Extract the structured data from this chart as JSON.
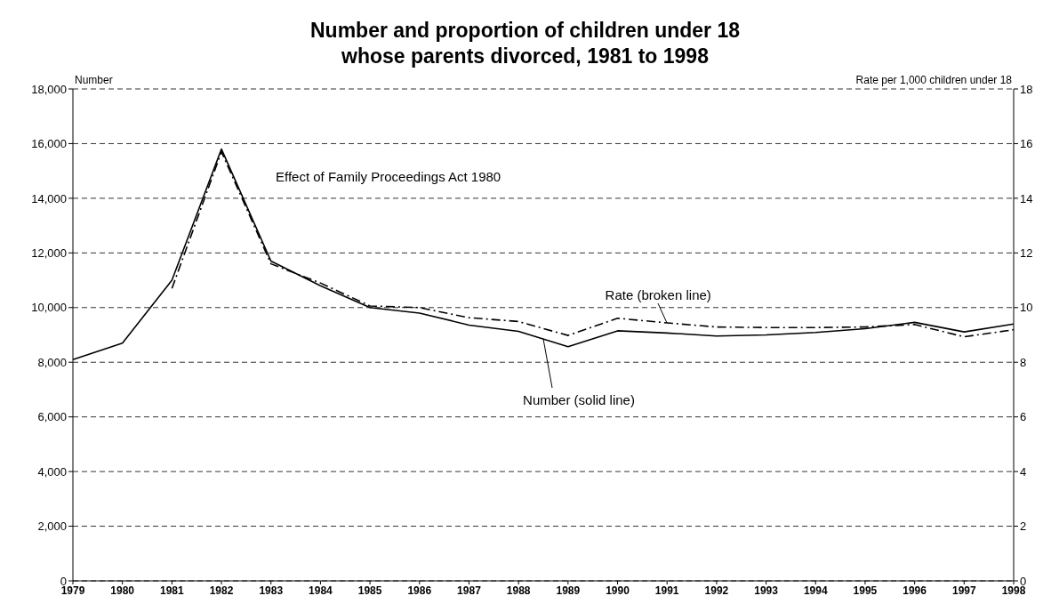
{
  "chart_data": {
    "type": "line",
    "title": "Number and proportion of children under 18\nwhose parents divorced, 1981 to 1998",
    "ylabel": "Number",
    "y2label": "Rate per 1,000 children under 18",
    "annotations": [
      "Effect of Family Proceedings Act 1980"
    ],
    "categories": [
      "1979",
      "1980",
      "1981",
      "1982",
      "1983",
      "1984",
      "1985",
      "1986",
      "1987",
      "1988",
      "1989",
      "1990",
      "1991",
      "1992",
      "1993",
      "1994",
      "1995",
      "1996",
      "1997",
      "1998"
    ],
    "series": [
      {
        "name": "Number (solid line)",
        "color": "#000000",
        "line_style": "solid",
        "values": [
          8100,
          8700,
          11000,
          15800,
          11700,
          10800,
          10000,
          9800,
          9360,
          9130,
          8570,
          9150,
          9070,
          8960,
          9000,
          9090,
          9230,
          9460,
          9110,
          9400
        ]
      },
      {
        "name": "Rate (broken line)",
        "color": "#000000",
        "line_style": "dashed",
        "axis": "y2",
        "values": [
          null,
          null,
          10.7,
          15.7,
          11.6,
          10.9,
          10.06,
          10.0,
          9.63,
          9.49,
          8.98,
          9.61,
          9.44,
          9.29,
          9.27,
          9.27,
          9.29,
          9.38,
          8.93,
          9.19
        ]
      }
    ],
    "ylim": [
      0,
      18000
    ],
    "yticks": [
      {
        "value": 0,
        "label": "0"
      },
      {
        "value": 2000,
        "label": "2,000"
      },
      {
        "value": 4000,
        "label": "4,000"
      },
      {
        "value": 6000,
        "label": "6,000"
      },
      {
        "value": 8000,
        "label": "8,000"
      },
      {
        "value": 10000,
        "label": "10,000"
      },
      {
        "value": 12000,
        "label": "12,000"
      },
      {
        "value": 14000,
        "label": "14,000"
      },
      {
        "value": 16000,
        "label": "16,000"
      },
      {
        "value": 18000,
        "label": "18,000"
      }
    ],
    "y2lim": [
      0,
      18
    ],
    "y2ticks": [
      0,
      2,
      4,
      6,
      8,
      10,
      12,
      14,
      16,
      18
    ],
    "grid": "y",
    "legend": false,
    "marker": "none"
  }
}
